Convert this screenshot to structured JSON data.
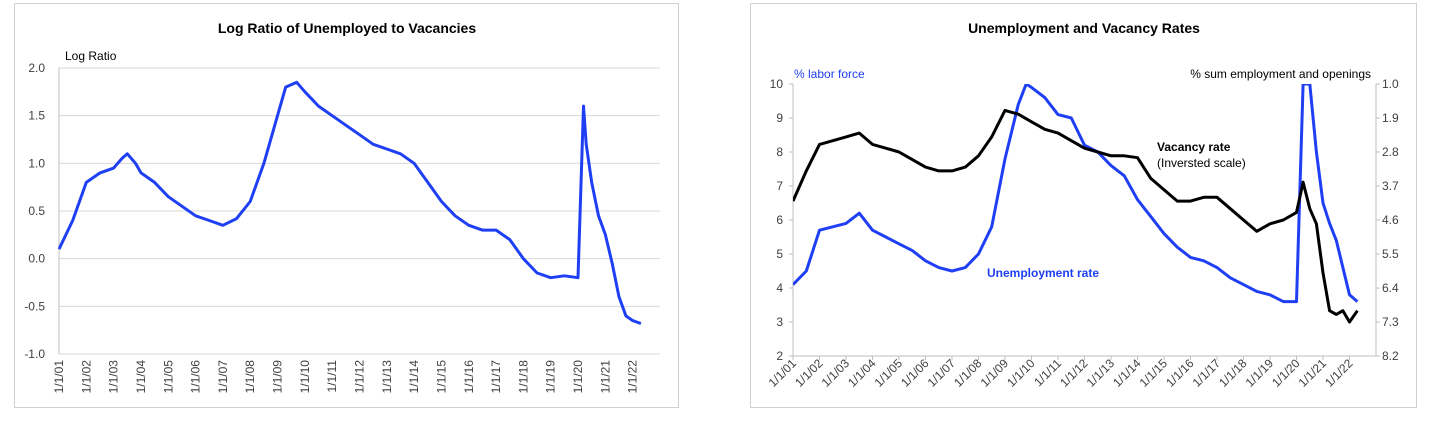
{
  "chart_data": [
    {
      "type": "line",
      "title": "Log Ratio of Unemployed to Vacancies",
      "ylabel": "Log Ratio",
      "xlabel": "",
      "ylim": [
        -1.0,
        2.0
      ],
      "yticks": [
        "2.0",
        "1.5",
        "1.0",
        "0.5",
        "0.0",
        "-0.5",
        "-1.0"
      ],
      "xticks": [
        "1/1/01",
        "1/1/02",
        "1/1/03",
        "1/1/04",
        "1/1/05",
        "1/1/06",
        "1/1/07",
        "1/1/08",
        "1/1/09",
        "1/1/10",
        "1/1/11",
        "1/1/12",
        "1/1/13",
        "1/1/14",
        "1/1/15",
        "1/1/16",
        "1/1/17",
        "1/1/18",
        "1/1/19",
        "1/1/20",
        "1/1/21",
        "1/1/22"
      ],
      "grid": true,
      "series": [
        {
          "color": "#1f3ff5",
          "x": [
            2001.0,
            2001.5,
            2002.0,
            2002.5,
            2003.0,
            2003.3,
            2003.5,
            2003.8,
            2004.0,
            2004.5,
            2005.0,
            2005.5,
            2006.0,
            2006.5,
            2007.0,
            2007.5,
            2008.0,
            2008.5,
            2009.0,
            2009.3,
            2009.7,
            2010.0,
            2010.5,
            2011.0,
            2011.5,
            2012.0,
            2012.5,
            2013.0,
            2013.5,
            2014.0,
            2014.5,
            2015.0,
            2015.5,
            2016.0,
            2016.5,
            2017.0,
            2017.5,
            2018.0,
            2018.5,
            2019.0,
            2019.5,
            2020.0,
            2020.2,
            2020.3,
            2020.5,
            2020.75,
            2021.0,
            2021.25,
            2021.5,
            2021.75,
            2022.0,
            2022.3
          ],
          "y": [
            0.1,
            0.4,
            0.8,
            0.9,
            0.95,
            1.05,
            1.1,
            1.0,
            0.9,
            0.8,
            0.65,
            0.55,
            0.45,
            0.4,
            0.35,
            0.42,
            0.6,
            1.0,
            1.5,
            1.8,
            1.85,
            1.75,
            1.6,
            1.5,
            1.4,
            1.3,
            1.2,
            1.15,
            1.1,
            1.0,
            0.8,
            0.6,
            0.45,
            0.35,
            0.3,
            0.3,
            0.2,
            0.0,
            -0.15,
            -0.2,
            -0.18,
            -0.2,
            1.6,
            1.2,
            0.8,
            0.45,
            0.25,
            -0.05,
            -0.4,
            -0.6,
            -0.65,
            -0.68
          ]
        }
      ]
    },
    {
      "type": "line",
      "title": "Unemployment and Vacancy Rates",
      "ylabel": "% labor force",
      "ylabel_right": "% sum employment and openings",
      "ylim": [
        2,
        10
      ],
      "ylim_right": [
        8.2,
        1.0
      ],
      "yticks": [
        "10",
        "9",
        "8",
        "7",
        "6",
        "5",
        "4",
        "3",
        "2"
      ],
      "yticks_right": [
        "1.0",
        "1.9",
        "2.8",
        "3.7",
        "4.6",
        "5.5",
        "6.4",
        "7.3",
        "8.2"
      ],
      "xticks": [
        "1/1/01",
        "1/1/02",
        "1/1/03",
        "1/1/04",
        "1/1/05",
        "1/1/06",
        "1/1/07",
        "1/1/08",
        "1/1/09",
        "1/1/10",
        "1/1/11",
        "1/1/12",
        "1/1/13",
        "1/1/14",
        "1/1/15",
        "1/1/16",
        "1/1/17",
        "1/1/18",
        "1/1/19",
        "1/1/20",
        "1/1/21",
        "1/1/22"
      ],
      "grid": false,
      "annotations": [
        {
          "text": "Vacancy rate",
          "bold": true
        },
        {
          "text": "(Inversted scale)",
          "bold": false
        },
        {
          "text": "Unemployment rate",
          "bold": true,
          "color": "#1f3ff5"
        }
      ],
      "series": [
        {
          "name": "Unemployment rate",
          "color": "#1f3ff5",
          "axis": "left",
          "x": [
            2001.0,
            2001.5,
            2002.0,
            2002.5,
            2003.0,
            2003.5,
            2004.0,
            2004.5,
            2005.0,
            2005.5,
            2006.0,
            2006.5,
            2007.0,
            2007.5,
            2008.0,
            2008.5,
            2009.0,
            2009.5,
            2009.8,
            2010.0,
            2010.5,
            2011.0,
            2011.5,
            2012.0,
            2012.5,
            2013.0,
            2013.5,
            2014.0,
            2014.5,
            2015.0,
            2015.5,
            2016.0,
            2016.5,
            2017.0,
            2017.5,
            2018.0,
            2018.5,
            2019.0,
            2019.5,
            2020.0,
            2020.25,
            2020.3,
            2020.5,
            2020.75,
            2021.0,
            2021.25,
            2021.5,
            2021.75,
            2022.0,
            2022.3
          ],
          "y": [
            4.1,
            4.5,
            5.7,
            5.8,
            5.9,
            6.2,
            5.7,
            5.5,
            5.3,
            5.1,
            4.8,
            4.6,
            4.5,
            4.6,
            5.0,
            5.8,
            7.8,
            9.4,
            10.0,
            9.9,
            9.6,
            9.1,
            9.0,
            8.2,
            8.0,
            7.6,
            7.3,
            6.6,
            6.1,
            5.6,
            5.2,
            4.9,
            4.8,
            4.6,
            4.3,
            4.1,
            3.9,
            3.8,
            3.6,
            3.6,
            10.0,
            10.0,
            10.0,
            8.0,
            6.5,
            5.9,
            5.4,
            4.6,
            3.8,
            3.6
          ]
        },
        {
          "name": "Vacancy rate",
          "color": "#000000",
          "axis": "right",
          "x": [
            2001.0,
            2001.5,
            2002.0,
            2002.5,
            2003.0,
            2003.5,
            2004.0,
            2004.5,
            2005.0,
            2005.5,
            2006.0,
            2006.5,
            2007.0,
            2007.5,
            2008.0,
            2008.5,
            2009.0,
            2009.5,
            2010.0,
            2010.5,
            2011.0,
            2011.5,
            2012.0,
            2012.5,
            2013.0,
            2013.5,
            2014.0,
            2014.5,
            2015.0,
            2015.5,
            2016.0,
            2016.5,
            2017.0,
            2017.5,
            2018.0,
            2018.5,
            2019.0,
            2019.5,
            2020.0,
            2020.25,
            2020.5,
            2020.75,
            2021.0,
            2021.25,
            2021.5,
            2021.75,
            2022.0,
            2022.3
          ],
          "y": [
            4.1,
            3.3,
            2.6,
            2.5,
            2.4,
            2.3,
            2.6,
            2.7,
            2.8,
            3.0,
            3.2,
            3.3,
            3.3,
            3.2,
            2.9,
            2.4,
            1.7,
            1.8,
            2.0,
            2.2,
            2.3,
            2.5,
            2.7,
            2.8,
            2.9,
            2.9,
            2.95,
            3.5,
            3.8,
            4.1,
            4.1,
            4.0,
            4.0,
            4.3,
            4.6,
            4.9,
            4.7,
            4.6,
            4.4,
            3.6,
            4.3,
            4.7,
            6.0,
            7.0,
            7.1,
            7.0,
            7.3,
            7.0
          ]
        }
      ]
    }
  ]
}
